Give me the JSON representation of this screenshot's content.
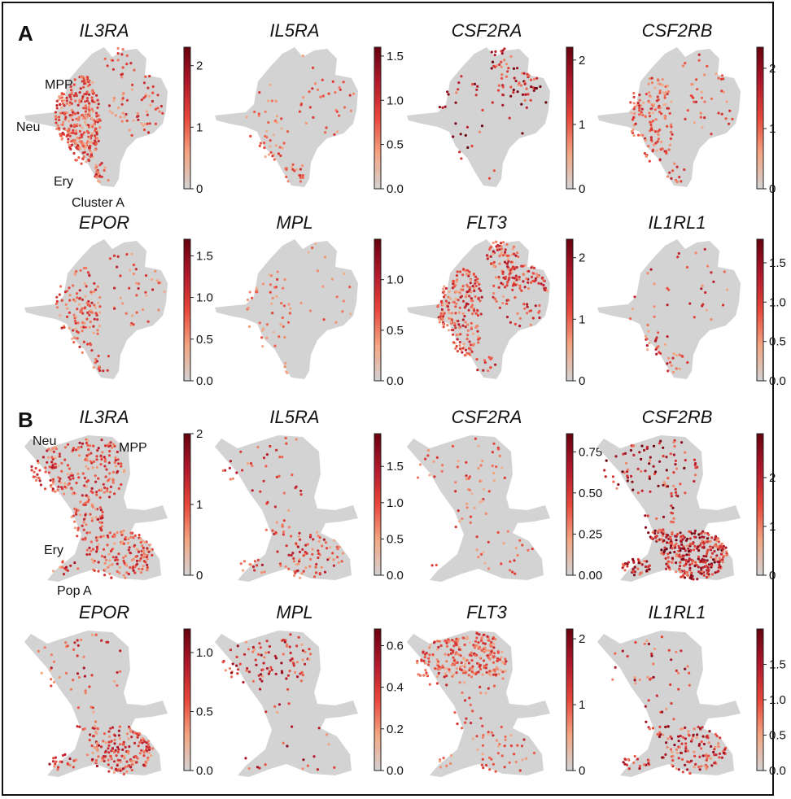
{
  "sections": [
    {
      "letter": "A",
      "cell_labels": [
        "MPP",
        "Neu",
        "Ery",
        "Cluster A"
      ],
      "panels": [
        {
          "gene": "IL3RA",
          "ticks": [
            "0",
            "1",
            "2"
          ],
          "max": 2.3,
          "density": 0.7,
          "intensity": 0.55,
          "hotspot": "left"
        },
        {
          "gene": "IL5RA",
          "ticks": [
            "0.0",
            "0.5",
            "1.0",
            "1.5"
          ],
          "max": 1.6,
          "density": 0.1,
          "intensity": 0.5,
          "hotspot": "bottom"
        },
        {
          "gene": "CSF2RA",
          "ticks": [
            "0",
            "1",
            "2"
          ],
          "max": 2.2,
          "density": 0.12,
          "intensity": 0.85,
          "hotspot": "top"
        },
        {
          "gene": "CSF2RB",
          "ticks": [
            "0",
            "1",
            "2"
          ],
          "max": 2.35,
          "density": 0.3,
          "intensity": 0.55,
          "hotspot": "left"
        }
      ]
    },
    {
      "letter": "",
      "cell_labels": [],
      "panels": [
        {
          "gene": "EPOR",
          "ticks": [
            "0.0",
            "0.5",
            "1.0",
            "1.5"
          ],
          "max": 1.7,
          "density": 0.25,
          "intensity": 0.55,
          "hotspot": "left"
        },
        {
          "gene": "MPL",
          "ticks": [
            "0.0",
            "0.5",
            "1.0"
          ],
          "max": 1.4,
          "density": 0.05,
          "intensity": 0.45,
          "hotspot": "left"
        },
        {
          "gene": "FLT3",
          "ticks": [
            "0",
            "1",
            "2"
          ],
          "max": 2.3,
          "density": 0.7,
          "intensity": 0.6,
          "hotspot": "topleft"
        },
        {
          "gene": "IL1RL1",
          "ticks": [
            "0.0",
            "0.5",
            "1.0",
            "1.5"
          ],
          "max": 1.8,
          "density": 0.05,
          "intensity": 0.6,
          "hotspot": "bottom"
        }
      ]
    },
    {
      "letter": "B",
      "cell_labels": [
        "Neu",
        "MPP",
        "Ery",
        "Pop A"
      ],
      "panels": [
        {
          "gene": "IL3RA",
          "ticks": [
            "0",
            "1",
            "2"
          ],
          "max": 2.0,
          "density": 0.75,
          "intensity": 0.6,
          "hotspot": "all"
        },
        {
          "gene": "IL5RA",
          "ticks": [
            "0.0",
            "0.5",
            "1.0",
            "1.5"
          ],
          "max": 1.95,
          "density": 0.2,
          "intensity": 0.6,
          "hotspot": "bottom"
        },
        {
          "gene": "CSF2RA",
          "ticks": [
            "0.00",
            "0.25",
            "0.50",
            "0.75"
          ],
          "max": 0.86,
          "density": 0.08,
          "intensity": 0.5,
          "hotspot": "all"
        },
        {
          "gene": "CSF2RB",
          "ticks": [
            "0",
            "1",
            "2"
          ],
          "max": 2.9,
          "density": 0.8,
          "intensity": 0.8,
          "hotspot": "bottom"
        }
      ]
    },
    {
      "letter": "",
      "cell_labels": [],
      "panels": [
        {
          "gene": "EPOR",
          "ticks": [
            "0.0",
            "0.5",
            "1.0"
          ],
          "max": 1.2,
          "density": 0.4,
          "intensity": 0.65,
          "hotspot": "bottom"
        },
        {
          "gene": "MPL",
          "ticks": [
            "0.0",
            "0.2",
            "0.4",
            "0.6"
          ],
          "max": 0.68,
          "density": 0.15,
          "intensity": 0.7,
          "hotspot": "top"
        },
        {
          "gene": "FLT3",
          "ticks": [
            "0",
            "1",
            "2"
          ],
          "max": 2.15,
          "density": 0.55,
          "intensity": 0.55,
          "hotspot": "top"
        },
        {
          "gene": "IL1RL1",
          "ticks": [
            "0.0",
            "0.5",
            "1.0",
            "1.5"
          ],
          "max": 2.0,
          "density": 0.3,
          "intensity": 0.7,
          "hotspot": "bottom"
        }
      ]
    }
  ],
  "chart_data": {
    "type": "scatter",
    "description_free": true,
    "colormap": [
      "#d3d3d3",
      "#f4a582",
      "#e8473a",
      "#b2182b",
      "#67000d"
    ],
    "background_cell_color": "#d3d3d3"
  }
}
